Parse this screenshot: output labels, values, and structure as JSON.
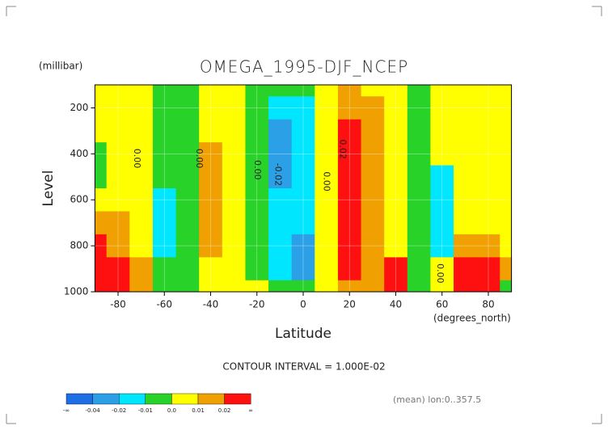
{
  "chart_data": {
    "type": "contour",
    "title": "OMEGA_1995-DJF_NCEP",
    "y_unit": "(millibar)",
    "y_label": "Level",
    "x_label": "Latitude",
    "x_unit": "(degrees_north)",
    "interval_note": "CONTOUR INTERVAL = 1.000E-02",
    "footnote": "(mean) lon:0..357.5",
    "x": [
      -90,
      -80,
      -70,
      -60,
      -50,
      -40,
      -30,
      -20,
      -10,
      0,
      10,
      20,
      30,
      40,
      50,
      60,
      70,
      80,
      90
    ],
    "y": [
      100,
      200,
      300,
      400,
      500,
      600,
      700,
      800,
      900,
      1000
    ],
    "z": [
      [
        0.005,
        0.005,
        0.005,
        -0.005,
        -0.005,
        0.005,
        0.005,
        -0.005,
        -0.005,
        -0.005,
        0.005,
        0.015,
        0.005,
        0.005,
        -0.005,
        0.005,
        0.005,
        0.005,
        0.005
      ],
      [
        0.005,
        0.005,
        0.005,
        -0.005,
        -0.005,
        0.005,
        0.005,
        -0.005,
        -0.015,
        -0.015,
        0.005,
        0.015,
        0.015,
        0.005,
        -0.005,
        0.005,
        0.005,
        0.005,
        0.005
      ],
      [
        0.005,
        0.005,
        0.005,
        -0.005,
        -0.005,
        0.005,
        0.005,
        -0.005,
        -0.025,
        -0.015,
        0.005,
        0.025,
        0.015,
        0.005,
        -0.005,
        0.005,
        0.005,
        0.005,
        0.005
      ],
      [
        -0.005,
        0.005,
        0.005,
        -0.005,
        -0.005,
        0.015,
        0.005,
        -0.005,
        -0.025,
        -0.015,
        0.005,
        0.025,
        0.015,
        0.005,
        -0.005,
        0.005,
        0.005,
        0.005,
        0.005
      ],
      [
        -0.005,
        0.005,
        0.005,
        -0.005,
        -0.005,
        0.015,
        0.005,
        -0.005,
        -0.025,
        -0.015,
        0.005,
        0.025,
        0.015,
        0.005,
        -0.005,
        -0.015,
        0.005,
        0.005,
        0.005
      ],
      [
        0.005,
        0.005,
        0.005,
        -0.015,
        -0.005,
        0.015,
        0.005,
        -0.005,
        -0.015,
        -0.015,
        0.005,
        0.025,
        0.015,
        0.005,
        -0.005,
        -0.015,
        0.005,
        0.005,
        0.005
      ],
      [
        0.015,
        0.015,
        0.005,
        -0.015,
        -0.005,
        0.015,
        0.005,
        -0.005,
        -0.015,
        -0.015,
        0.005,
        0.025,
        0.015,
        0.005,
        -0.005,
        -0.015,
        0.005,
        0.005,
        0.005
      ],
      [
        0.025,
        0.015,
        0.005,
        -0.015,
        -0.005,
        0.015,
        0.005,
        -0.005,
        -0.015,
        -0.025,
        0.005,
        0.025,
        0.015,
        0.005,
        -0.005,
        -0.015,
        0.015,
        0.015,
        0.005
      ],
      [
        0.025,
        0.025,
        0.015,
        -0.005,
        -0.005,
        0.005,
        0.005,
        -0.005,
        -0.015,
        -0.025,
        0.005,
        0.025,
        0.015,
        0.025,
        -0.005,
        0.005,
        0.025,
        0.025,
        0.015
      ],
      [
        0.025,
        0.025,
        0.015,
        -0.005,
        -0.005,
        0.005,
        0.005,
        0.005,
        -0.005,
        -0.005,
        0.005,
        0.015,
        0.015,
        0.025,
        -0.005,
        0.005,
        0.025,
        0.025,
        -0.005
      ]
    ],
    "xlim": [
      -90,
      90
    ],
    "ylim": [
      1000,
      100
    ],
    "xticks": [
      -80,
      -60,
      -40,
      -20,
      0,
      20,
      40,
      60,
      80
    ],
    "yticks": [
      200,
      400,
      600,
      800,
      1000
    ],
    "grid": true,
    "levels": [
      -0.04,
      -0.02,
      -0.01,
      {
        "value": 0,
        "label": "0.0"
      },
      0.01,
      0.02
    ],
    "end_labels": [
      "-∞",
      "∞"
    ],
    "colors": [
      "#1e6ee6",
      "#2ca0e6",
      "#00e6ff",
      "#28d228",
      "#ffff00",
      "#f0a000",
      "#ff1010"
    ],
    "contour_labels": [
      {
        "text": "0.00",
        "x": -72,
        "y": 420
      },
      {
        "text": "0.00",
        "x": -45,
        "y": 420
      },
      {
        "text": "0.00",
        "x": -20,
        "y": 470
      },
      {
        "text": "-0.02",
        "x": -11,
        "y": 490
      },
      {
        "text": "0.00",
        "x": 10,
        "y": 520
      },
      {
        "text": "0.02",
        "x": 17,
        "y": 380
      },
      {
        "text": "0.00",
        "x": 59,
        "y": 920
      }
    ]
  }
}
